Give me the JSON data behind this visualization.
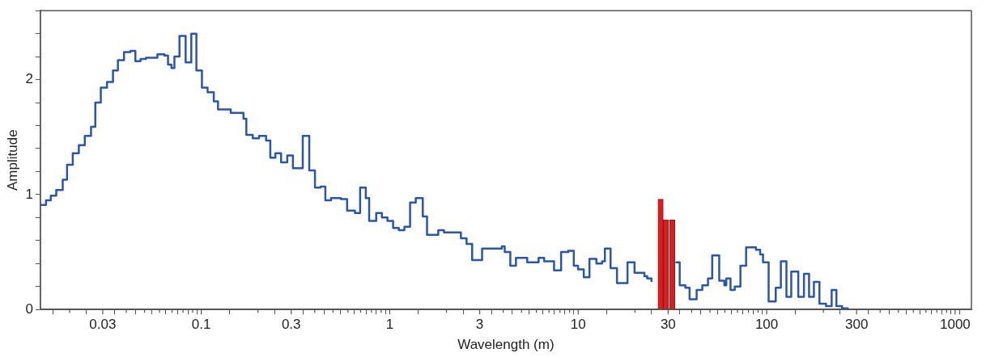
{
  "chart_data": {
    "type": "step",
    "xlabel": "Wavelength (m)",
    "ylabel": "Amplitude",
    "log": "x",
    "xlim": [
      0.014,
      1220
    ],
    "ylim": [
      0,
      2.6
    ],
    "xticks": [
      {
        "value": 0.02,
        "label": null
      },
      0.03,
      {
        "value": 0.04,
        "label": null
      },
      {
        "value": 0.05,
        "label": null
      },
      {
        "value": 0.06,
        "label": null
      },
      {
        "value": 0.07,
        "label": null
      },
      {
        "value": 0.08,
        "label": null
      },
      {
        "value": 0.09,
        "label": null
      },
      0.1,
      {
        "value": 0.2,
        "label": null
      },
      0.3,
      {
        "value": 0.4,
        "label": null
      },
      {
        "value": 0.5,
        "label": null
      },
      {
        "value": 0.6,
        "label": null
      },
      {
        "value": 0.7,
        "label": null
      },
      {
        "value": 0.8,
        "label": null
      },
      {
        "value": 0.9,
        "label": null
      },
      1,
      {
        "value": 2,
        "label": null
      },
      3,
      {
        "value": 4,
        "label": null
      },
      {
        "value": 5,
        "label": null
      },
      {
        "value": 6,
        "label": null
      },
      {
        "value": 7,
        "label": null
      },
      {
        "value": 8,
        "label": null
      },
      {
        "value": 9,
        "label": null
      },
      10,
      {
        "value": 20,
        "label": null
      },
      30,
      {
        "value": 40,
        "label": null
      },
      {
        "value": 50,
        "label": null
      },
      {
        "value": 60,
        "label": null
      },
      {
        "value": 70,
        "label": null
      },
      {
        "value": 80,
        "label": null
      },
      {
        "value": 90,
        "label": null
      },
      100,
      {
        "value": 200,
        "label": null
      },
      300,
      {
        "value": 400,
        "label": null
      },
      {
        "value": 500,
        "label": null
      },
      {
        "value": 600,
        "label": null
      },
      {
        "value": 700,
        "label": null
      },
      {
        "value": 800,
        "label": null
      },
      {
        "value": 900,
        "label": null
      },
      1000
    ],
    "yticks": [
      0,
      {
        "value": 0.2,
        "label": null
      },
      {
        "value": 0.4,
        "label": null
      },
      {
        "value": 0.6,
        "label": null
      },
      {
        "value": 0.8,
        "label": null
      },
      1,
      {
        "value": 1.2,
        "label": null
      },
      {
        "value": 1.4,
        "label": null
      },
      {
        "value": 1.6,
        "label": null
      },
      {
        "value": 1.8,
        "label": null
      },
      2,
      {
        "value": 2.2,
        "label": null
      },
      {
        "value": 2.4,
        "label": null
      },
      {
        "value": 2.6,
        "label": null
      }
    ],
    "grid": false,
    "legend": false,
    "series": [
      {
        "color": "#2a56a8",
        "x": [
          0.014,
          0.015,
          0.0159,
          0.017,
          0.0184,
          0.0194,
          0.0208,
          0.0224,
          0.0241,
          0.026,
          0.0274,
          0.0293,
          0.0316,
          0.034,
          0.0361,
          0.0389,
          0.0421,
          0.0447,
          0.0476,
          0.0509,
          0.0585,
          0.0637,
          0.0666,
          0.0695,
          0.072,
          0.0766,
          0.0826,
          0.0885,
          0.0942,
          0.1008,
          0.108,
          0.1165,
          0.1227,
          0.1433,
          0.1674,
          0.1734,
          0.1876,
          0.2025,
          0.2207,
          0.2324,
          0.2473,
          0.2651,
          0.2859,
          0.3064,
          0.3455,
          0.3741,
          0.401,
          0.4293,
          0.4553,
          0.4881,
          0.5504,
          0.594,
          0.654,
          0.6963,
          0.7461,
          0.7776,
          0.8474,
          0.9083,
          0.9725,
          1.042,
          1.117,
          1.196,
          1.282,
          1.374,
          1.497,
          1.577,
          1.809,
          1.94,
          2.385,
          2.556,
          2.737,
          3.09,
          3.932,
          4.073,
          4.362,
          4.673,
          5.363,
          6.162,
          6.597,
          7.444,
          8.114,
          8.851,
          9.476,
          9.98,
          10.7,
          11.47,
          12.49,
          13.39,
          13.85,
          14.85,
          16.06,
          18.26,
          19.9,
          22.46,
          23.24,
          24.48,
          26.67,
          28.1,
          30.33,
          32.81,
          34.55,
          37.03,
          38.99,
          42.5,
          45.54,
          48.81,
          51.4,
          56.01,
          59.62,
          61.05,
          64.29,
          67.71,
          72.56,
          77.77,
          87.69,
          92.35,
          95.65,
          102.4,
          111.7,
          118.9,
          127.3,
          135,
          147.1,
          157.7,
          167.8,
          178,
          190.5,
          206.4,
          221.2,
          234.4,
          251.2,
          269.2
        ],
        "values": [
          0.91,
          0.95,
          0.99,
          1.04,
          1.13,
          1.26,
          1.36,
          1.43,
          1.51,
          1.59,
          1.8,
          1.93,
          1.98,
          2.08,
          2.17,
          2.24,
          2.25,
          2.16,
          2.18,
          2.19,
          2.22,
          2.21,
          2.13,
          2.1,
          2.2,
          2.38,
          2.15,
          2.4,
          2.08,
          1.93,
          1.89,
          1.81,
          1.74,
          1.71,
          1.66,
          1.52,
          1.49,
          1.51,
          1.47,
          1.32,
          1.36,
          1.28,
          1.34,
          1.23,
          1.51,
          1.21,
          1.06,
          1.07,
          0.95,
          0.97,
          0.96,
          0.86,
          0.84,
          1.06,
          0.97,
          0.77,
          0.84,
          0.8,
          0.77,
          0.71,
          0.69,
          0.72,
          0.93,
          0.97,
          0.81,
          0.65,
          0.69,
          0.67,
          0.62,
          0.57,
          0.43,
          0.53,
          0.55,
          0.5,
          0.38,
          0.45,
          0.41,
          0.45,
          0.42,
          0.34,
          0.5,
          0.51,
          0.38,
          0.35,
          0.28,
          0.44,
          0.4,
          0.42,
          0.53,
          0.36,
          0.23,
          0.41,
          0.32,
          0.29,
          0.27,
          0.24,
          null,
          null,
          null,
          0.41,
          0.21,
          0.19,
          0.09,
          0.17,
          0.21,
          0.27,
          0.47,
          0.25,
          0.21,
          0.27,
          0.17,
          0.2,
          0.38,
          0.54,
          0.52,
          0.48,
          0.41,
          0.07,
          0.19,
          0.42,
          0.11,
          0.33,
          0.11,
          0.31,
          0.11,
          0.24,
          0.05,
          0.03,
          0.17,
          0.03,
          0.01,
          0
        ]
      },
      {
        "type": "bar",
        "color": "#d42020",
        "x": [
          27.37,
          29.19,
          31.54
        ],
        "values": [
          0.96,
          0.78,
          0.78
        ]
      }
    ]
  }
}
